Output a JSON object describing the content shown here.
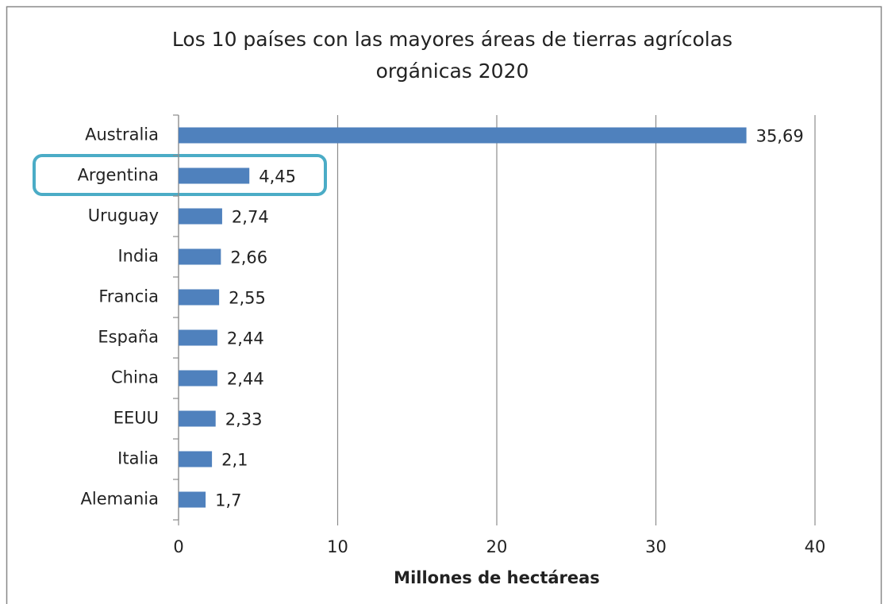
{
  "chart_data": {
    "type": "bar",
    "orientation": "horizontal",
    "title": "Los 10 países con las mayores áreas de tierras agrícolas orgánicas 2020",
    "x_label": "Millones de hectáreas",
    "categories": [
      "Australia",
      "Argentina",
      "Uruguay",
      "India",
      "Francia",
      "España",
      "China",
      "EEUU",
      "Italia",
      "Alemania"
    ],
    "values": [
      35.69,
      4.45,
      2.74,
      2.66,
      2.55,
      2.44,
      2.44,
      2.33,
      2.1,
      1.7
    ],
    "value_labels": [
      "35,69",
      "4,45",
      "2,74",
      "2,66",
      "2,55",
      "2,44",
      "2,44",
      "2,33",
      "2,1",
      "1,7"
    ],
    "color": "#4f81bd",
    "xlim": [
      0,
      40
    ],
    "xticks": [
      0,
      10,
      20,
      30,
      40
    ],
    "grid": true
  }
}
